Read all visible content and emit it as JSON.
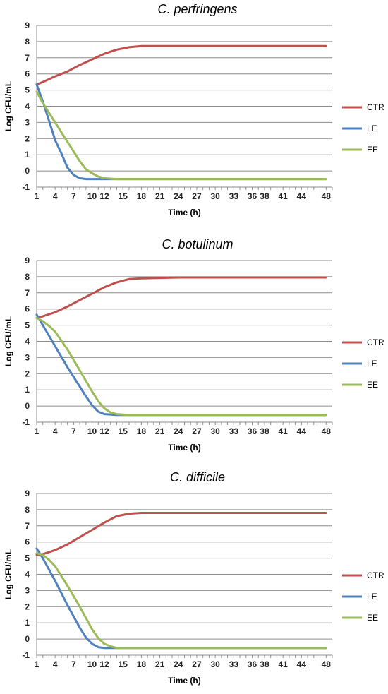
{
  "chart_data": [
    {
      "type": "line",
      "title": "C. perfringens",
      "xlabel": "Time (h)",
      "ylabel": "Log CFU/mL",
      "ylim": [
        -1,
        9
      ],
      "yticks": [
        -1,
        0,
        1,
        2,
        3,
        4,
        5,
        6,
        7,
        8,
        9
      ],
      "xticks": [
        1,
        4,
        7,
        10,
        12,
        15,
        18,
        21,
        24,
        27,
        30,
        33,
        36,
        38,
        41,
        44,
        48
      ],
      "grid": true,
      "legend": "right",
      "series": [
        {
          "name": "CTR",
          "color": "#c0504d",
          "x": [
            1,
            2,
            4,
            6,
            8,
            10,
            12,
            14,
            16,
            18,
            24,
            36,
            48
          ],
          "values": [
            5.35,
            5.5,
            5.85,
            6.15,
            6.55,
            6.9,
            7.25,
            7.5,
            7.65,
            7.72,
            7.72,
            7.72,
            7.72
          ]
        },
        {
          "name": "LE",
          "color": "#4f81bd",
          "x": [
            1,
            2,
            3,
            4,
            5,
            6,
            7,
            8,
            9,
            10,
            12,
            18,
            48
          ],
          "values": [
            5.35,
            4.3,
            3.1,
            1.9,
            1.1,
            0.2,
            -0.25,
            -0.45,
            -0.5,
            -0.5,
            -0.5,
            -0.5,
            -0.5
          ]
        },
        {
          "name": "EE",
          "color": "#9bbb59",
          "x": [
            1,
            2,
            4,
            6,
            7,
            8,
            9,
            10,
            11,
            12,
            14,
            16,
            48
          ],
          "values": [
            4.9,
            4.2,
            3.0,
            1.8,
            1.2,
            0.6,
            0.1,
            -0.15,
            -0.35,
            -0.45,
            -0.5,
            -0.5,
            -0.5
          ]
        }
      ]
    },
    {
      "type": "line",
      "title": "C. botulinum",
      "xlabel": "Time (h)",
      "ylabel": "Log CFU/mL",
      "ylim": [
        -1,
        9
      ],
      "yticks": [
        -1,
        0,
        1,
        2,
        3,
        4,
        5,
        6,
        7,
        8,
        9
      ],
      "xticks": [
        1,
        4,
        7,
        10,
        12,
        15,
        18,
        21,
        24,
        27,
        30,
        33,
        36,
        38,
        41,
        44,
        48
      ],
      "grid": true,
      "legend": "right",
      "series": [
        {
          "name": "CTR",
          "color": "#c0504d",
          "x": [
            1,
            2,
            4,
            6,
            8,
            10,
            12,
            14,
            16,
            18,
            24,
            36,
            48
          ],
          "values": [
            5.45,
            5.55,
            5.8,
            6.15,
            6.55,
            6.95,
            7.35,
            7.65,
            7.85,
            7.9,
            7.95,
            7.95,
            7.95
          ]
        },
        {
          "name": "LE",
          "color": "#4f81bd",
          "x": [
            1,
            2,
            4,
            6,
            8,
            9,
            10,
            11,
            12,
            14,
            18,
            48
          ],
          "values": [
            5.65,
            5.0,
            3.7,
            2.4,
            1.2,
            0.6,
            0.05,
            -0.35,
            -0.5,
            -0.55,
            -0.55,
            -0.55
          ]
        },
        {
          "name": "EE",
          "color": "#9bbb59",
          "x": [
            1,
            2,
            3,
            4,
            6,
            8,
            10,
            11,
            12,
            13,
            14,
            16,
            18,
            48
          ],
          "values": [
            5.45,
            5.25,
            4.95,
            4.6,
            3.5,
            2.2,
            0.9,
            0.3,
            -0.15,
            -0.4,
            -0.5,
            -0.55,
            -0.55,
            -0.55
          ]
        }
      ]
    },
    {
      "type": "line",
      "title": "C. difficile",
      "xlabel": "Time (h)",
      "ylabel": "Log CFU/mL",
      "ylim": [
        -1,
        9
      ],
      "yticks": [
        -1,
        0,
        1,
        2,
        3,
        4,
        5,
        6,
        7,
        8,
        9
      ],
      "xticks": [
        1,
        4,
        7,
        10,
        12,
        15,
        18,
        21,
        24,
        27,
        30,
        33,
        36,
        38,
        41,
        44,
        48
      ],
      "grid": true,
      "legend": "right",
      "series": [
        {
          "name": "CTR",
          "color": "#c0504d",
          "x": [
            1,
            2,
            4,
            6,
            8,
            10,
            12,
            14,
            16,
            18,
            24,
            36,
            48
          ],
          "values": [
            5.2,
            5.25,
            5.5,
            5.85,
            6.3,
            6.75,
            7.2,
            7.6,
            7.75,
            7.8,
            7.8,
            7.8,
            7.8
          ]
        },
        {
          "name": "LE",
          "color": "#4f81bd",
          "x": [
            1,
            2,
            4,
            6,
            8,
            9,
            10,
            11,
            12,
            14,
            18,
            48
          ],
          "values": [
            5.6,
            5.0,
            3.6,
            2.1,
            0.7,
            0.1,
            -0.3,
            -0.5,
            -0.55,
            -0.55,
            -0.55,
            -0.55
          ]
        },
        {
          "name": "EE",
          "color": "#9bbb59",
          "x": [
            1,
            2,
            3,
            4,
            6,
            8,
            10,
            11,
            12,
            13,
            14,
            16,
            18,
            48
          ],
          "values": [
            5.3,
            5.2,
            4.9,
            4.5,
            3.3,
            2.0,
            0.6,
            0.05,
            -0.3,
            -0.45,
            -0.55,
            -0.55,
            -0.55,
            -0.55
          ]
        }
      ]
    }
  ]
}
